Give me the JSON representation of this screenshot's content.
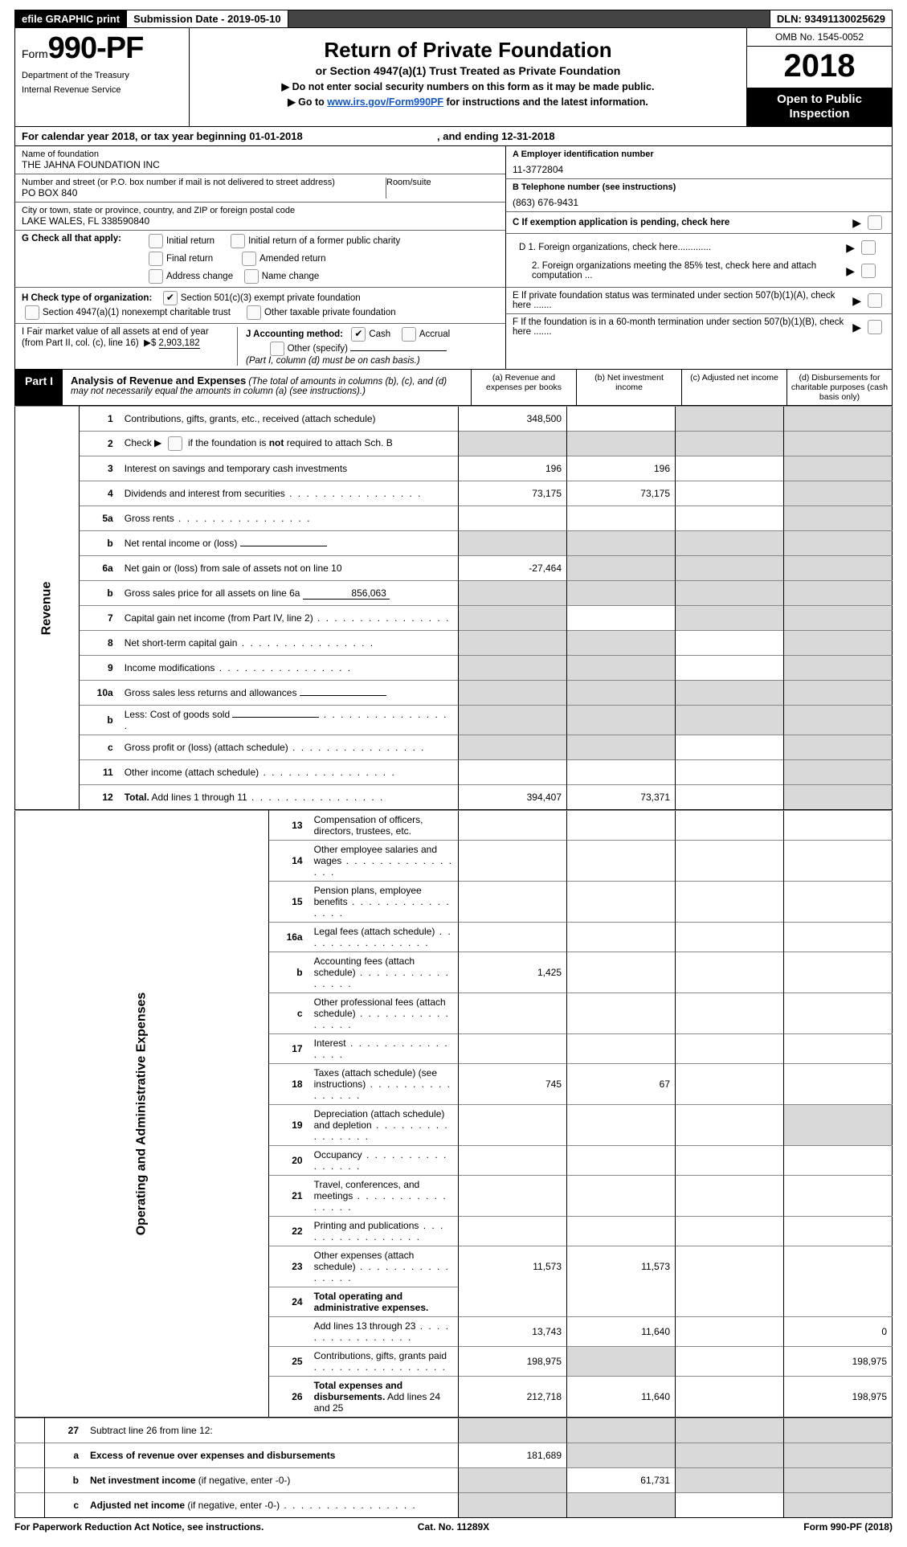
{
  "topbar": {
    "efile": "efile GRAPHIC print",
    "submission": "Submission Date - 2019-05-10",
    "dln": "DLN: 93491130025629"
  },
  "header": {
    "form_prefix": "Form",
    "form_no": "990-PF",
    "dept1": "Department of the Treasury",
    "dept2": "Internal Revenue Service",
    "title": "Return of Private Foundation",
    "sub1": "or Section 4947(a)(1) Trust Treated as Private Foundation",
    "sub2": "▶  Do not enter social security numbers on this form as it may be made public.",
    "sub3_pre": "▶ Go to ",
    "sub3_link": "www.irs.gov/Form990PF",
    "sub3_post": " for instructions and the latest information.",
    "omb": "OMB No. 1545-0052",
    "year": "2018",
    "open": "Open to Public Inspection"
  },
  "calendar_line_pre": "For calendar year 2018, or tax year beginning ",
  "calendar_begin": "01-01-2018",
  "calendar_mid": ", and ending ",
  "calendar_end": "12-31-2018",
  "ident": {
    "name_lbl": "Name of foundation",
    "name": "THE JAHNA FOUNDATION INC",
    "addr_lbl": "Number and street (or P.O. box number if mail is not delivered to street address)",
    "addr": "PO BOX 840",
    "room_lbl": "Room/suite",
    "room": "",
    "city_lbl": "City or town, state or province, country, and ZIP or foreign postal code",
    "city": "LAKE WALES, FL   338590840",
    "a_lbl": "A Employer identification number",
    "a_val": "11-3772804",
    "b_lbl": "B Telephone number (see instructions)",
    "b_val": "(863) 676-9431",
    "c_lbl": "C   If exemption application is pending, check here",
    "d1": "D 1. Foreign organizations, check here.............",
    "d2": "2. Foreign organizations meeting the 85% test, check here and attach computation ...",
    "e": "E   If private foundation status was terminated under section 507(b)(1)(A), check here .......",
    "f": "F   If the foundation is in a 60-month termination under section 507(b)(1)(B), check here ......."
  },
  "boxG": {
    "pre": "G Check all that apply:",
    "opts": [
      "Initial return",
      "Initial return of a former public charity",
      "Final return",
      "Amended return",
      "Address change",
      "Name change"
    ]
  },
  "boxH": {
    "pre": "H Check type of organization:",
    "o1": "Section 501(c)(3) exempt private foundation",
    "o2": "Section 4947(a)(1) nonexempt charitable trust",
    "o3": "Other taxable private foundation"
  },
  "boxI": {
    "text": "I Fair market value of all assets at end of year (from Part II, col. (c), line 16)",
    "arrow": "▶$",
    "val": "2,903,182"
  },
  "boxJ": {
    "pre": "J Accounting method:",
    "cash": "Cash",
    "accrual": "Accrual",
    "other": "Other (specify)",
    "note": "(Part I, column (d) must be on cash basis.)"
  },
  "part1": {
    "part": "Part I",
    "title": "Analysis of Revenue and Expenses",
    "note": "(The total of amounts in columns (b), (c), and (d) may not necessarily equal the amounts in column (a) (see instructions).)",
    "cols": {
      "a": "(a)    Revenue and expenses per books",
      "b": "(b)    Net investment income",
      "c": "(c)    Adjusted net income",
      "d": "(d)    Disbursements for charitable purposes (cash basis only)"
    }
  },
  "sections": {
    "revenue": "Revenue",
    "opadmin": "Operating and Administrative Expenses"
  },
  "rows": [
    {
      "n": "1",
      "l": "Contributions, gifts, grants, etc., received (attach schedule)",
      "a": "348,500",
      "b": "",
      "c": "sh",
      "d": "sh"
    },
    {
      "n": "2",
      "l": "Check ▶  [cbx]  if the foundation is <b>not</b> required to attach Sch. B",
      "a": "sh",
      "b": "sh",
      "c": "sh",
      "d": "sh"
    },
    {
      "n": "3",
      "l": "Interest on savings and temporary cash investments",
      "a": "196",
      "b": "196",
      "c": "",
      "d": "sh"
    },
    {
      "n": "4",
      "l": "Dividends and interest from securities",
      "dots": true,
      "a": "73,175",
      "b": "73,175",
      "c": "",
      "d": "sh"
    },
    {
      "n": "5a",
      "l": "Gross rents",
      "dots": true,
      "a": "",
      "b": "",
      "c": "",
      "d": "sh"
    },
    {
      "n": "b",
      "l": "Net rental income or (loss)",
      "inline": "",
      "a": "sh",
      "b": "sh",
      "c": "sh",
      "d": "sh"
    },
    {
      "n": "6a",
      "l": "Net gain or (loss) from sale of assets not on line 10",
      "a": "-27,464",
      "b": "sh",
      "c": "sh",
      "d": "sh"
    },
    {
      "n": "b",
      "l": "Gross sales price for all assets on line 6a",
      "inline": "856,063",
      "a": "sh",
      "b": "sh",
      "c": "sh",
      "d": "sh"
    },
    {
      "n": "7",
      "l": "Capital gain net income (from Part IV, line 2)",
      "dots": true,
      "a": "sh",
      "b": "",
      "c": "sh",
      "d": "sh"
    },
    {
      "n": "8",
      "l": "Net short-term capital gain",
      "dots": true,
      "a": "sh",
      "b": "sh",
      "c": "",
      "d": "sh"
    },
    {
      "n": "9",
      "l": "Income modifications",
      "dots": true,
      "a": "sh",
      "b": "sh",
      "c": "",
      "d": "sh"
    },
    {
      "n": "10a",
      "l": "Gross sales less returns and allowances",
      "inline": "",
      "a": "sh",
      "b": "sh",
      "c": "sh",
      "d": "sh"
    },
    {
      "n": "b",
      "l": "Less: Cost of goods sold",
      "dots": true,
      "inline": "",
      "a": "sh",
      "b": "sh",
      "c": "sh",
      "d": "sh"
    },
    {
      "n": "c",
      "l": "Gross profit or (loss) (attach schedule)",
      "dots": true,
      "a": "sh",
      "b": "sh",
      "c": "",
      "d": "sh"
    },
    {
      "n": "11",
      "l": "Other income (attach schedule)",
      "dots": true,
      "a": "",
      "b": "",
      "c": "",
      "d": "sh"
    },
    {
      "n": "12",
      "l": "<b>Total.</b> Add lines 1 through 11",
      "dots": true,
      "a": "394,407",
      "b": "73,371",
      "c": "",
      "d": "sh"
    }
  ],
  "rows2": [
    {
      "n": "13",
      "l": "Compensation of officers, directors, trustees, etc.",
      "a": "",
      "b": "",
      "c": "",
      "d": ""
    },
    {
      "n": "14",
      "l": "Other employee salaries and wages",
      "dots": true,
      "a": "",
      "b": "",
      "c": "",
      "d": ""
    },
    {
      "n": "15",
      "l": "Pension plans, employee benefits",
      "dots": true,
      "a": "",
      "b": "",
      "c": "",
      "d": ""
    },
    {
      "n": "16a",
      "l": "Legal fees (attach schedule)",
      "dots": true,
      "a": "",
      "b": "",
      "c": "",
      "d": ""
    },
    {
      "n": "b",
      "l": "Accounting fees (attach schedule)",
      "dots": true,
      "a": "1,425",
      "b": "",
      "c": "",
      "d": ""
    },
    {
      "n": "c",
      "l": "Other professional fees (attach schedule)",
      "dots": true,
      "a": "",
      "b": "",
      "c": "",
      "d": ""
    },
    {
      "n": "17",
      "l": "Interest",
      "dots": true,
      "a": "",
      "b": "",
      "c": "",
      "d": ""
    },
    {
      "n": "18",
      "l": "Taxes (attach schedule) (see instructions)",
      "dots": true,
      "a": "745",
      "b": "67",
      "c": "",
      "d": ""
    },
    {
      "n": "19",
      "l": "Depreciation (attach schedule) and depletion",
      "dots": true,
      "a": "",
      "b": "",
      "c": "",
      "d": "sh"
    },
    {
      "n": "20",
      "l": "Occupancy",
      "dots": true,
      "a": "",
      "b": "",
      "c": "",
      "d": ""
    },
    {
      "n": "21",
      "l": "Travel, conferences, and meetings",
      "dots": true,
      "a": "",
      "b": "",
      "c": "",
      "d": ""
    },
    {
      "n": "22",
      "l": "Printing and publications",
      "dots": true,
      "a": "",
      "b": "",
      "c": "",
      "d": ""
    },
    {
      "n": "23",
      "l": "Other expenses (attach schedule)",
      "dots": true,
      "a": "11,573",
      "b": "11,573",
      "c": "",
      "d": ""
    },
    {
      "n": "24",
      "l": "<b>Total operating and administrative expenses.</b>",
      "a": "nb",
      "b": "nb",
      "c": "nb",
      "d": "nb"
    },
    {
      "n": "",
      "l": "Add lines 13 through 23",
      "dots": true,
      "a": "13,743",
      "b": "11,640",
      "c": "",
      "d": "0"
    },
    {
      "n": "25",
      "l": "Contributions, gifts, grants paid",
      "dots": true,
      "a": "198,975",
      "b": "sh",
      "c": "",
      "d": "198,975"
    },
    {
      "n": "26",
      "l": "<b>Total expenses and disbursements.</b> Add lines 24 and 25",
      "a": "212,718",
      "b": "11,640",
      "c": "",
      "d": "198,975"
    }
  ],
  "rows3": [
    {
      "n": "27",
      "l": "Subtract line 26 from line 12:",
      "a": "sh",
      "b": "sh",
      "c": "sh",
      "d": "sh"
    },
    {
      "n": "a",
      "l": "<b>Excess of revenue over expenses and disbursements</b>",
      "a": "181,689",
      "b": "sh",
      "c": "sh",
      "d": "sh"
    },
    {
      "n": "b",
      "l": "<b>Net investment income</b> (if negative, enter -0-)",
      "a": "sh",
      "b": "61,731",
      "c": "sh",
      "d": "sh"
    },
    {
      "n": "c",
      "l": "<b>Adjusted net income</b> (if negative, enter -0-)",
      "dots": true,
      "a": "sh",
      "b": "sh",
      "c": "",
      "d": "sh"
    }
  ],
  "footer": {
    "left": "For Paperwork Reduction Act Notice, see instructions.",
    "mid": "Cat. No. 11289X",
    "right": "Form 990-PF (2018)"
  }
}
